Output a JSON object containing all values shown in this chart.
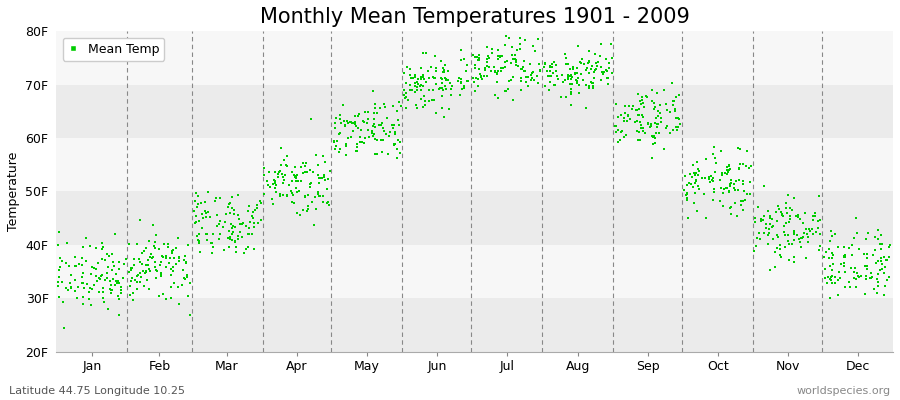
{
  "title": "Monthly Mean Temperatures 1901 - 2009",
  "ylabel": "Temperature",
  "xlabel_footer_left": "Latitude 44.75 Longitude 10.25",
  "xlabel_footer_right": "worldspecies.org",
  "legend_label": "Mean Temp",
  "background_color": "#ffffff",
  "plot_bg_color": "#ffffff",
  "band_colors": [
    "#ebebeb",
    "#f7f7f7"
  ],
  "marker_color": "#00cc00",
  "months": [
    "Jan",
    "Feb",
    "Mar",
    "Apr",
    "May",
    "Jun",
    "Jul",
    "Aug",
    "Sep",
    "Oct",
    "Nov",
    "Dec"
  ],
  "ylim": [
    20,
    80
  ],
  "yticks": [
    20,
    30,
    40,
    50,
    60,
    70,
    80
  ],
  "ytick_labels": [
    "20F",
    "30F",
    "40F",
    "50F",
    "60F",
    "70F",
    "80F"
  ],
  "num_years": 109,
  "monthly_mean_temps_f": [
    34.0,
    35.5,
    44.0,
    52.0,
    61.5,
    70.5,
    73.5,
    72.0,
    63.5,
    52.0,
    43.0,
    36.5
  ],
  "monthly_std_f": [
    3.2,
    3.2,
    3.2,
    3.0,
    3.0,
    2.8,
    2.5,
    2.5,
    3.0,
    3.0,
    3.2,
    3.2
  ],
  "title_fontsize": 15,
  "axis_fontsize": 9,
  "tick_fontsize": 9,
  "footer_fontsize": 8,
  "dashed_line_color": "#888888"
}
